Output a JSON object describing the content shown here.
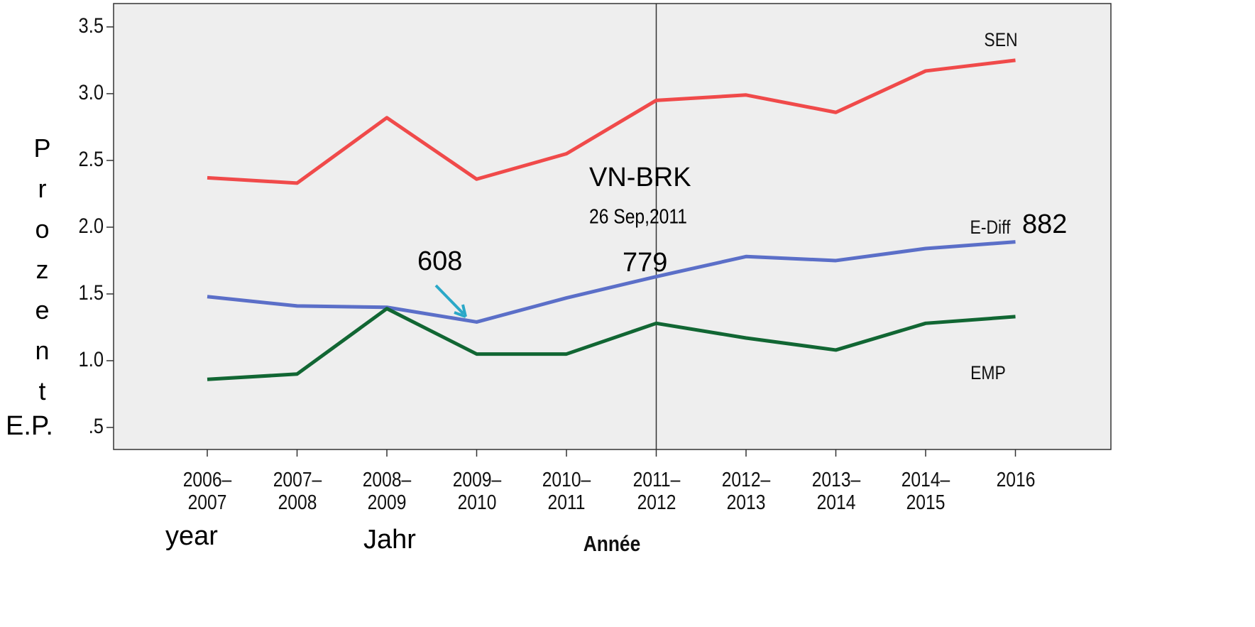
{
  "chart_data": {
    "type": "line",
    "x_label": "Année",
    "y_label": "Prozent",
    "categories": [
      "2006–2007",
      "2007–2008",
      "2008–2009",
      "2009–2010",
      "2010–2011",
      "2011–2012",
      "2012–2013",
      "2013–2014",
      "2014–2015",
      "2016"
    ],
    "series": [
      {
        "name": "SEN",
        "color": "#f04a4a",
        "values": [
          2.37,
          2.33,
          2.82,
          2.36,
          2.55,
          2.95,
          2.99,
          2.86,
          3.17,
          3.25
        ]
      },
      {
        "name": "E-Diff",
        "color": "#5b6fc8",
        "values": [
          1.48,
          1.41,
          1.4,
          1.29,
          1.47,
          1.63,
          1.78,
          1.75,
          1.84,
          1.89
        ]
      },
      {
        "name": "EMP",
        "color": "#116633",
        "values": [
          0.86,
          0.9,
          1.39,
          1.05,
          1.05,
          1.28,
          1.17,
          1.08,
          1.28,
          1.33
        ]
      }
    ],
    "ylim": [
      0.335,
      3.675
    ],
    "yticks": [
      {
        "value": 0.5,
        "label": ".5"
      },
      {
        "value": 1,
        "label": "1.0"
      },
      1.5,
      {
        "value": 2,
        "label": "2.0"
      },
      2.5,
      {
        "value": 3,
        "label": "3.0"
      },
      3.5
    ],
    "annotations": [
      "VN-BRK",
      "26 Sep,2011",
      "608",
      "779",
      "882",
      "year",
      "Jahr",
      "E.P."
    ]
  }
}
